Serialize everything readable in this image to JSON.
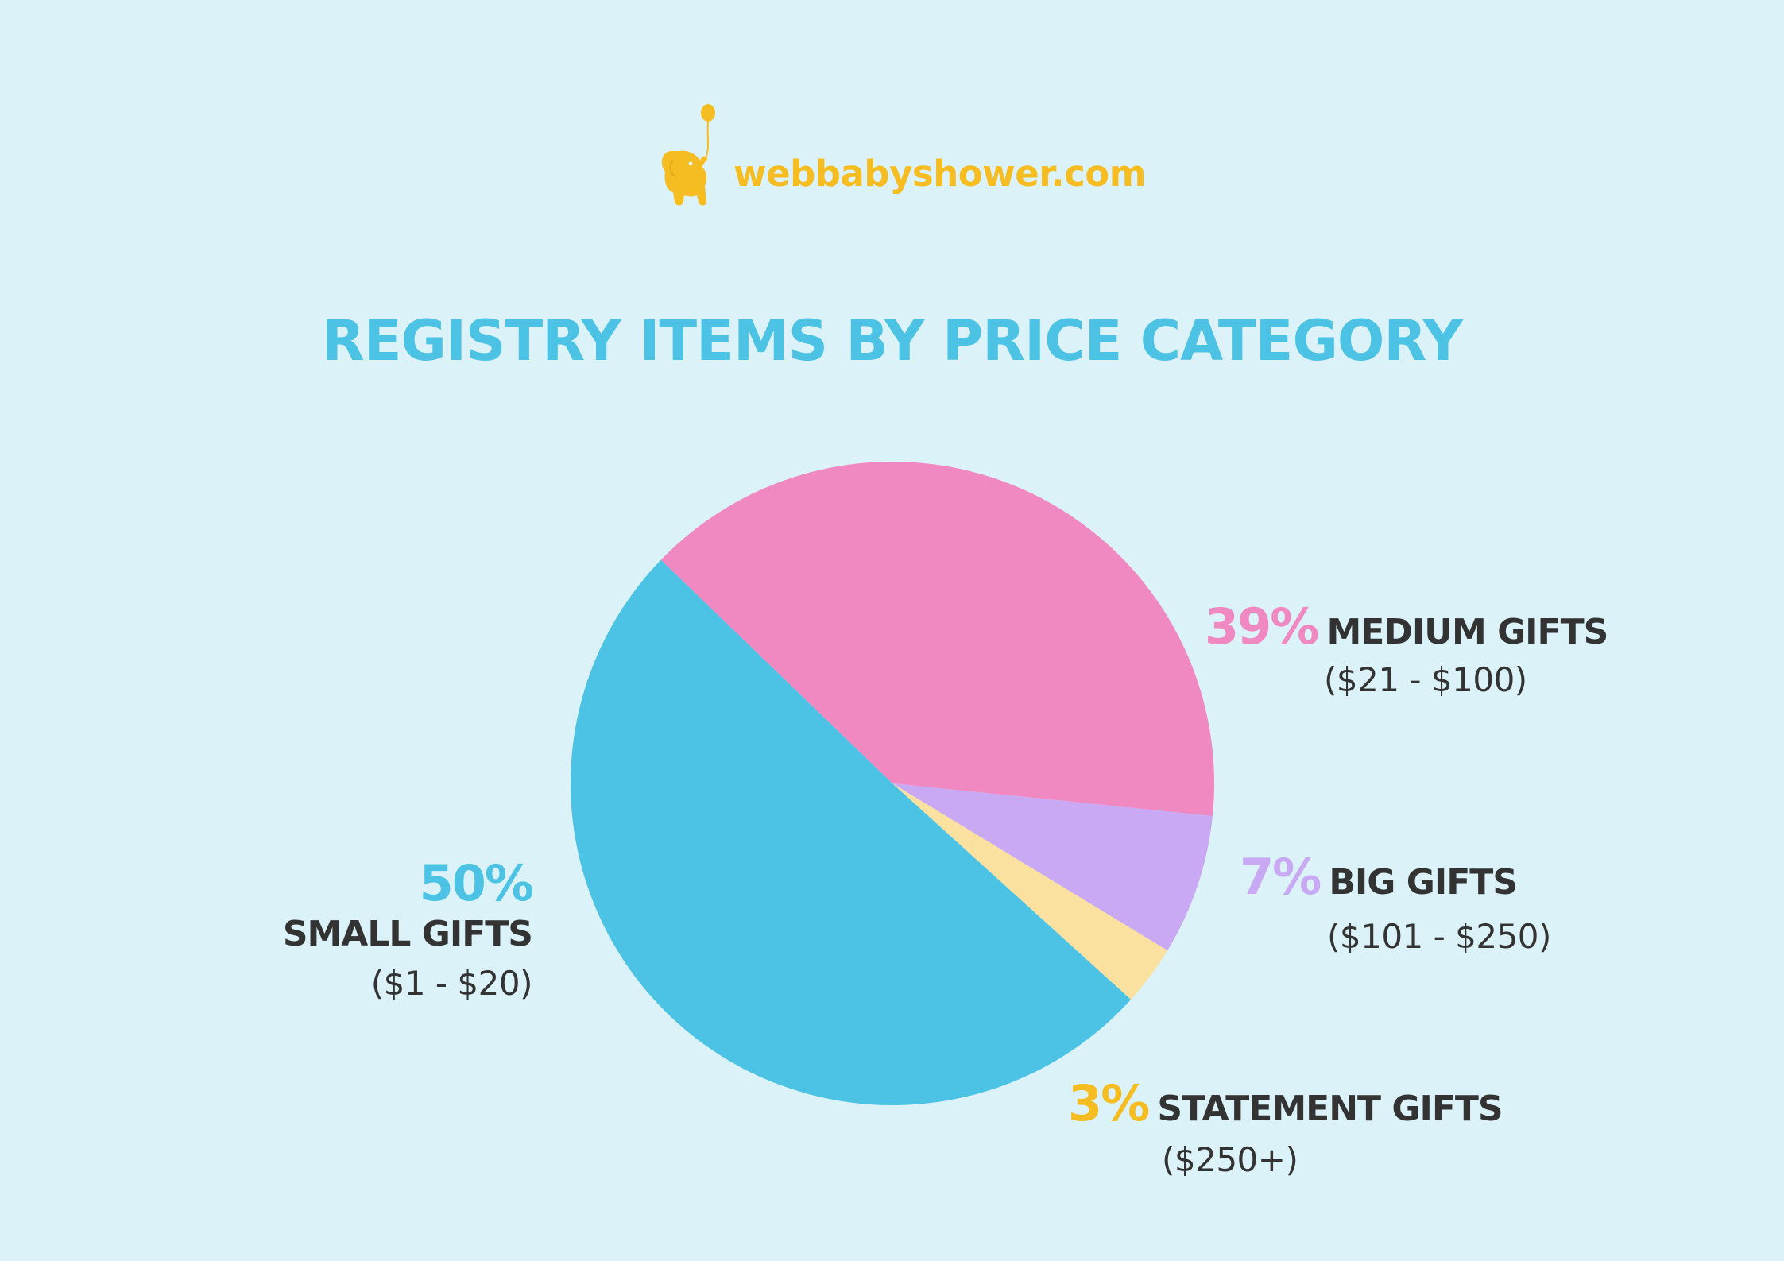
{
  "brand": {
    "name": "webbabyshower.com",
    "logo_icon": "elephant-balloon-icon",
    "color": "#f6bd22"
  },
  "chart_data": {
    "type": "pie",
    "title": "REGISTRY ITEMS BY PRICE CATEGORY",
    "slices": [
      {
        "label": "SMALL GIFTS",
        "range": "($1 - $20)",
        "value": 50,
        "pct_text": "50%",
        "color": "#4cc3e4"
      },
      {
        "label": "MEDIUM GIFTS",
        "range": "($21 - $100)",
        "value": 39,
        "pct_text": "39%",
        "color": "#f088c1"
      },
      {
        "label": "BIG GIFTS",
        "range": "($101 - $250)",
        "value": 7,
        "pct_text": "7%",
        "color": "#c9a9f4"
      },
      {
        "label": "STATEMENT GIFTS",
        "range": "($250+)",
        "value": 3,
        "pct_text": "3%",
        "color": "#fae1a0"
      }
    ],
    "label_colors": {
      "SMALL GIFTS": "#4cc3e4",
      "MEDIUM GIFTS": "#f088c1",
      "BIG GIFTS": "#c9a9f4",
      "STATEMENT GIFTS": "#f6bd22"
    }
  }
}
